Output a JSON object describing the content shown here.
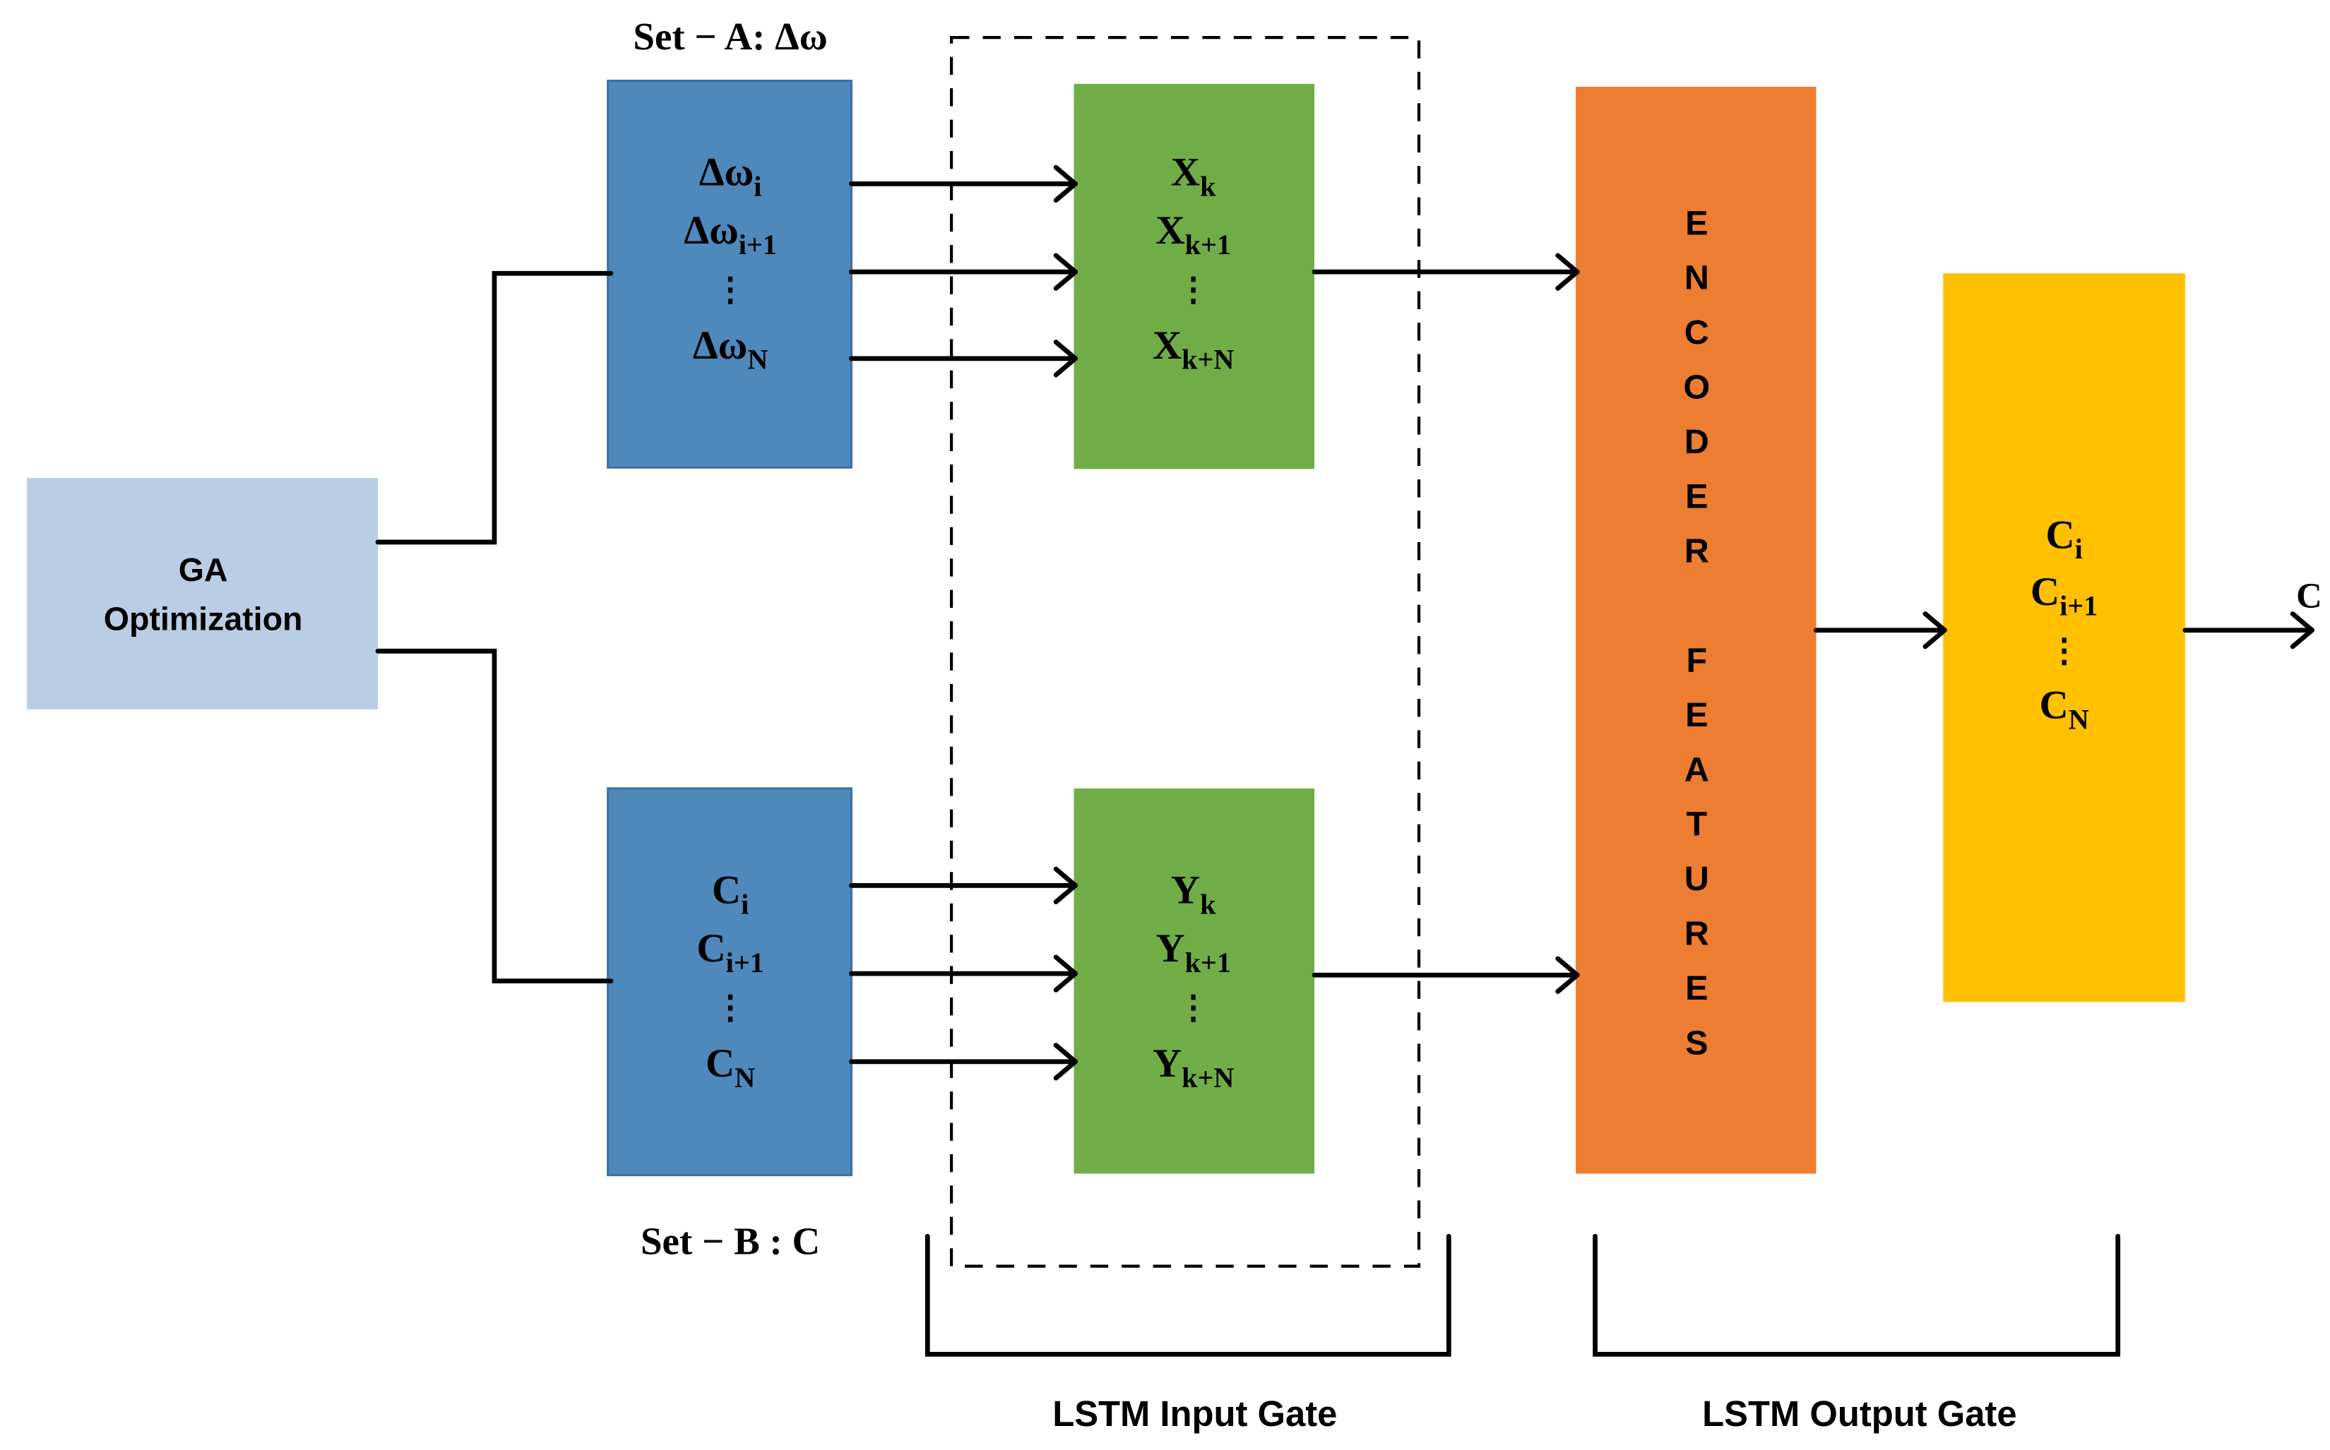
{
  "colors": {
    "ga_box": "#b9cde5",
    "input_set_box": "#4f88bb",
    "gate_box": "#70ad47",
    "encoder_box": "#ed7d31",
    "output_box": "#ffc000",
    "line": "#000000"
  },
  "ga": {
    "line1": "GA",
    "line2": "Optimization"
  },
  "set_a": {
    "label": "Set − A: Δω",
    "items": [
      {
        "base": "Δω",
        "sub": "i"
      },
      {
        "base": "Δω",
        "sub": "i+1"
      },
      {
        "base": "Δω",
        "sub": "N"
      }
    ],
    "ellipsis": "⋮"
  },
  "set_b": {
    "label": "Set − B : C",
    "items": [
      {
        "base": "C",
        "sub": "i"
      },
      {
        "base": "C",
        "sub": "i+1"
      },
      {
        "base": "C",
        "sub": "N"
      }
    ],
    "ellipsis": "⋮"
  },
  "x_gate": {
    "items": [
      {
        "base": "X",
        "sub": "k"
      },
      {
        "base": "X",
        "sub": "k+1"
      },
      {
        "base": "X",
        "sub": "k+N"
      }
    ],
    "ellipsis": "⋮"
  },
  "y_gate": {
    "items": [
      {
        "base": "Y",
        "sub": "k"
      },
      {
        "base": "Y",
        "sub": "k+1"
      },
      {
        "base": "Y",
        "sub": "k+N"
      }
    ],
    "ellipsis": "⋮"
  },
  "encoder": {
    "letters": [
      "E",
      "N",
      "C",
      "O",
      "D",
      "E",
      "R",
      "",
      "F",
      "E",
      "A",
      "T",
      "U",
      "R",
      "E",
      "S"
    ]
  },
  "output": {
    "items": [
      {
        "base": "C",
        "sub": "i"
      },
      {
        "base": "C",
        "sub": "i+1"
      },
      {
        "base": "C",
        "sub": "N"
      }
    ],
    "ellipsis": "⋮",
    "result_label": "C"
  },
  "brackets": {
    "input_gate": "LSTM Input Gate",
    "output_gate": "LSTM Output Gate"
  }
}
